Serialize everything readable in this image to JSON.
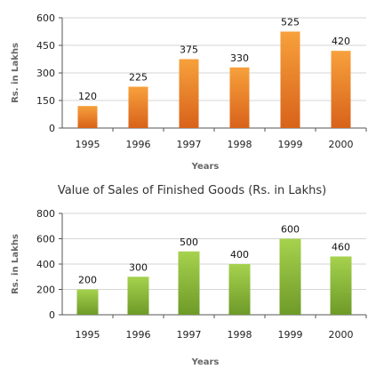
{
  "chart_data": [
    {
      "type": "bar",
      "title": "",
      "xlabel": "Years",
      "ylabel": "Rs. in Lakhs",
      "categories": [
        "1995",
        "1996",
        "1997",
        "1998",
        "1999",
        "2000"
      ],
      "values": [
        120,
        225,
        375,
        330,
        525,
        420
      ],
      "ylim": [
        0,
        600
      ],
      "yticks": [
        0,
        150,
        300,
        450,
        600
      ],
      "grid": true,
      "color_top": "#f7a13c",
      "color_bottom": "#d8621a"
    },
    {
      "type": "bar",
      "title": "Value of Sales of Finished Goods (Rs. in Lakhs)",
      "xlabel": "Years",
      "ylabel": "Rs. in Lakhs",
      "categories": [
        "1995",
        "1996",
        "1997",
        "1998",
        "1999",
        "2000"
      ],
      "values": [
        200,
        300,
        500,
        400,
        600,
        460
      ],
      "ylim": [
        0,
        800
      ],
      "yticks": [
        0,
        200,
        400,
        600,
        800
      ],
      "grid": true,
      "color_top": "#a6d24e",
      "color_bottom": "#6e9a28"
    }
  ]
}
